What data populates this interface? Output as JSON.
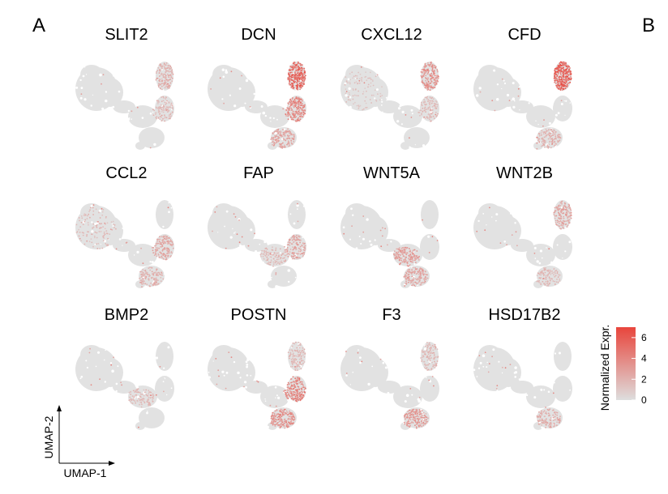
{
  "panel_labels": {
    "a": "A",
    "b": "B"
  },
  "colors": {
    "low": "#dedede",
    "high": "#e8453c"
  },
  "chart_data": {
    "type": "scatter",
    "description_of_marks": "UMAP embedding of cells, colored by normalized expression per gene",
    "genes": [
      {
        "name": "SLIT2",
        "hotspots": [
          {
            "region": "top-right",
            "level": 2.5
          },
          {
            "region": "right-middle",
            "level": 2.0
          }
        ]
      },
      {
        "name": "DCN",
        "hotspots": [
          {
            "region": "top-right",
            "level": 6.0
          },
          {
            "region": "right-middle",
            "level": 4.5
          },
          {
            "region": "bottom",
            "level": 3.0
          }
        ]
      },
      {
        "name": "CXCL12",
        "hotspots": [
          {
            "region": "top-right",
            "level": 4.0
          },
          {
            "region": "left-blob",
            "level": 1.5
          },
          {
            "region": "right-middle",
            "level": 2.0
          }
        ]
      },
      {
        "name": "CFD",
        "hotspots": [
          {
            "region": "top-right",
            "level": 6.5
          },
          {
            "region": "bottom",
            "level": 2.5
          }
        ]
      },
      {
        "name": "CCL2",
        "hotspots": [
          {
            "region": "left-blob",
            "level": 2.0
          },
          {
            "region": "right-middle",
            "level": 3.0
          },
          {
            "region": "bottom",
            "level": 2.5
          }
        ]
      },
      {
        "name": "FAP",
        "hotspots": [
          {
            "region": "right-middle",
            "level": 3.0
          },
          {
            "region": "center",
            "level": 2.0
          }
        ]
      },
      {
        "name": "WNT5A",
        "hotspots": [
          {
            "region": "center",
            "level": 3.5
          },
          {
            "region": "bottom",
            "level": 3.0
          }
        ]
      },
      {
        "name": "WNT2B",
        "hotspots": [
          {
            "region": "top-right",
            "level": 3.0
          },
          {
            "region": "bottom",
            "level": 2.0
          }
        ]
      },
      {
        "name": "BMP2",
        "hotspots": [
          {
            "region": "center",
            "level": 2.0
          }
        ]
      },
      {
        "name": "POSTN",
        "hotspots": [
          {
            "region": "right-middle",
            "level": 4.5
          },
          {
            "region": "bottom",
            "level": 4.0
          },
          {
            "region": "top-right",
            "level": 2.0
          }
        ]
      },
      {
        "name": "F3",
        "hotspots": [
          {
            "region": "bottom",
            "level": 3.5
          },
          {
            "region": "top-right",
            "level": 2.0
          }
        ]
      },
      {
        "name": "HSD17B2",
        "hotspots": [
          {
            "region": "bottom",
            "level": 2.5
          }
        ]
      }
    ],
    "xlabel": "UMAP-1",
    "ylabel": "UMAP-2",
    "legend": {
      "title": "Normalized Expr.",
      "ticks": [
        "0",
        "2",
        "4",
        "6"
      ],
      "range": [
        0,
        7
      ],
      "placement": "right"
    }
  }
}
